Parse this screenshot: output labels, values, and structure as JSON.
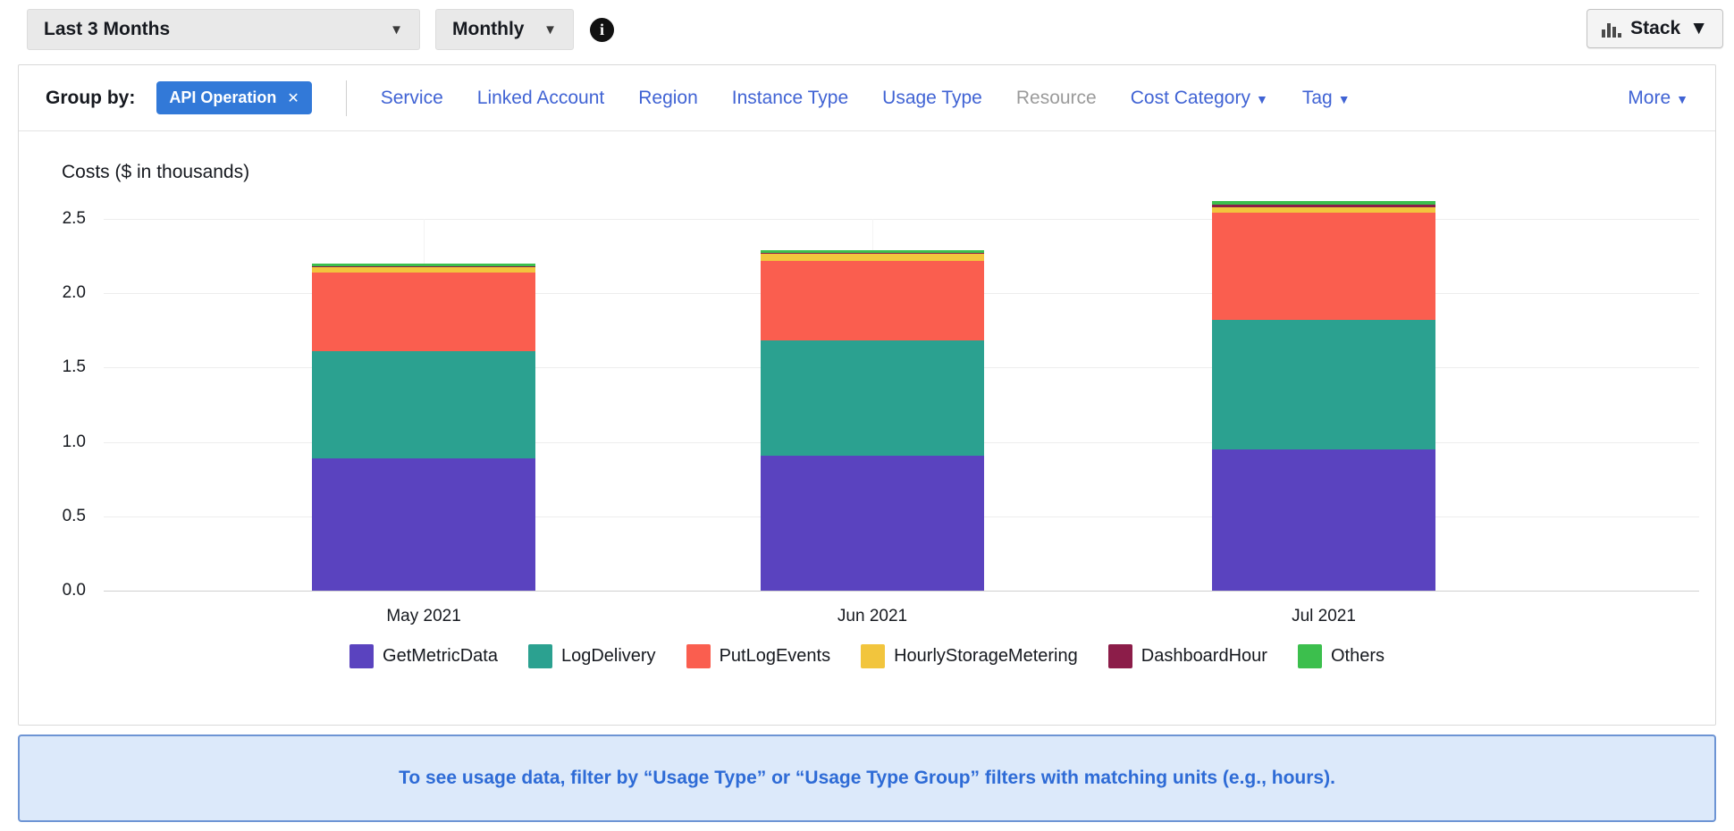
{
  "toolbar": {
    "date_range": "Last 3 Months",
    "granularity": "Monthly",
    "chart_style": "Stack",
    "info_glyph": "i",
    "caret": "▼"
  },
  "group_by": {
    "label": "Group by:",
    "chip": {
      "label": "API Operation",
      "close_glyph": "✕"
    },
    "links": [
      {
        "label": "Service",
        "enabled": true,
        "caret": false
      },
      {
        "label": "Linked Account",
        "enabled": true,
        "caret": false
      },
      {
        "label": "Region",
        "enabled": true,
        "caret": false
      },
      {
        "label": "Instance Type",
        "enabled": true,
        "caret": false
      },
      {
        "label": "Usage Type",
        "enabled": true,
        "caret": false
      },
      {
        "label": "Resource",
        "enabled": false,
        "caret": false
      },
      {
        "label": "Cost Category",
        "enabled": true,
        "caret": true
      },
      {
        "label": "Tag",
        "enabled": true,
        "caret": true
      }
    ],
    "more_label": "More"
  },
  "chart_data": {
    "type": "bar",
    "stacked": true,
    "title": "Costs ($ in thousands)",
    "categories": [
      "May 2021",
      "Jun 2021",
      "Jul 2021"
    ],
    "series": [
      {
        "name": "GetMetricData",
        "color": "#5a43bf",
        "values": [
          0.89,
          0.91,
          0.95
        ]
      },
      {
        "name": "LogDelivery",
        "color": "#2ba190",
        "values": [
          0.72,
          0.77,
          0.87
        ]
      },
      {
        "name": "PutLogEvents",
        "color": "#fa5e4f",
        "values": [
          0.53,
          0.54,
          0.72
        ]
      },
      {
        "name": "HourlyStorageMetering",
        "color": "#f2c53d",
        "values": [
          0.035,
          0.045,
          0.04
        ]
      },
      {
        "name": "DashboardHour",
        "color": "#8c1d49",
        "values": [
          0.005,
          0.005,
          0.015
        ]
      },
      {
        "name": "Others",
        "color": "#3cbf4d",
        "values": [
          0.02,
          0.02,
          0.025
        ]
      }
    ],
    "totals": [
      2.2,
      2.29,
      2.62
    ],
    "ylim": [
      0,
      2.5
    ],
    "yticks": [
      "0.0",
      "0.5",
      "1.0",
      "1.5",
      "2.0",
      "2.5"
    ],
    "grid": true,
    "legend_position": "bottom"
  },
  "banner": {
    "text": "To see usage data, filter by “Usage Type” or “Usage Type Group” filters with matching units (e.g., hours)."
  }
}
